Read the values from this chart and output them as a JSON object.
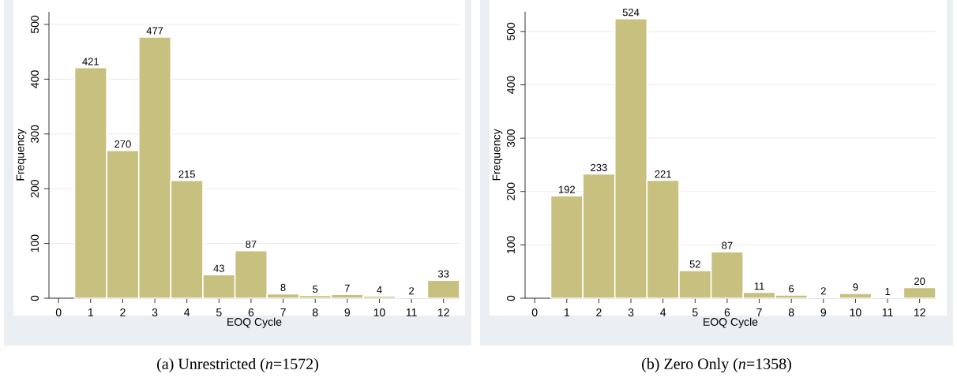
{
  "chart_data": [
    {
      "type": "histogram",
      "xlabel": "EOQ Cycle",
      "ylabel": "Frequency",
      "annotations": [
        "(a) Unrestricted (*n*=1572)"
      ],
      "bins": [
        0.5,
        1.5,
        2.5,
        3.5,
        4.5,
        5.5,
        6.5,
        7.5,
        8.5,
        9.5,
        10.5,
        11.5,
        12.5
      ],
      "values": [
        421,
        270,
        477,
        215,
        43,
        87,
        8,
        5,
        7,
        4,
        2,
        33
      ],
      "color": "#c8c07e",
      "data_labels": true,
      "grid": "y",
      "xlim": [
        -0.3,
        12.5
      ],
      "ylim": [
        0,
        523
      ],
      "xticks": [
        0,
        1,
        2,
        3,
        4,
        5,
        6,
        7,
        8,
        9,
        10,
        11,
        12
      ],
      "yticks": [
        0,
        100,
        200,
        300,
        400,
        500
      ]
    },
    {
      "type": "histogram",
      "xlabel": "EOQ Cycle",
      "ylabel": "Frequency",
      "annotations": [
        "(b) Zero Only (*n*=1358)"
      ],
      "bins": [
        0.5,
        1.5,
        2.5,
        3.5,
        4.5,
        5.5,
        6.5,
        7.5,
        8.5,
        9.5,
        10.5,
        11.5,
        12.5
      ],
      "values": [
        192,
        233,
        524,
        221,
        52,
        87,
        11,
        6,
        2,
        9,
        1,
        20
      ],
      "color": "#c8c07e",
      "data_labels": true,
      "grid": "y",
      "xlim": [
        -0.3,
        12.5
      ],
      "ylim": [
        0,
        537
      ],
      "xticks": [
        0,
        1,
        2,
        3,
        4,
        5,
        6,
        7,
        8,
        9,
        10,
        11,
        12
      ],
      "yticks": [
        0,
        100,
        200,
        300,
        400,
        500
      ]
    }
  ]
}
